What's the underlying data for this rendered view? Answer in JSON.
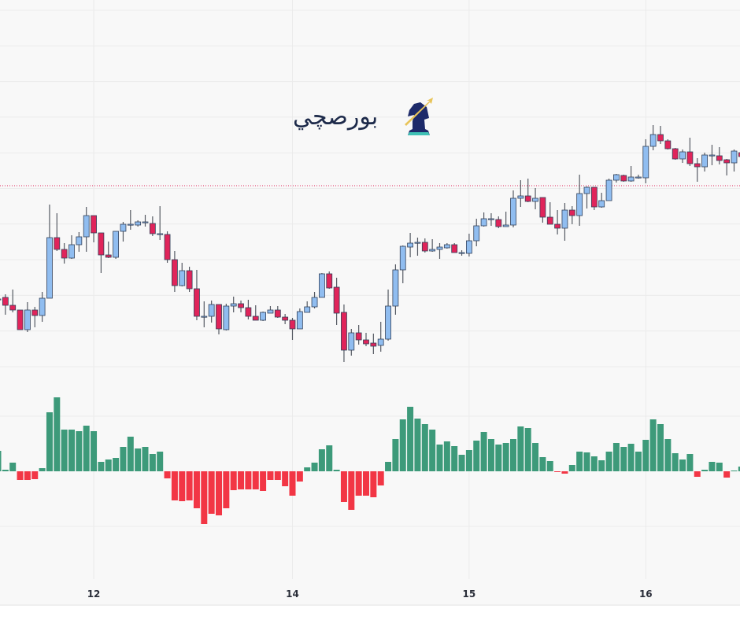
{
  "logo": {
    "text": "بورصچي"
  },
  "colors": {
    "background": "#f8f8f8",
    "grid": "#ebebeb",
    "up_body": "#90bdf0",
    "down_body": "#e0245a",
    "candle_border": "#34425a",
    "wick": "#555a63",
    "hist_up": "#3d9a7a",
    "hist_down": "#f23645",
    "ref_line": "#e0245a"
  },
  "chart_data": [
    {
      "type": "candlestick",
      "title": "",
      "units": "relative (no price axis shown)",
      "ohlc_format": [
        "open",
        "high",
        "low",
        "close"
      ],
      "reference_line": 264,
      "ylim": [
        -60,
        500
      ],
      "x_ticks": [
        {
          "index": 13,
          "label": "12"
        },
        {
          "index": 40,
          "label": "14"
        },
        {
          "index": 64,
          "label": "15"
        },
        {
          "index": 88,
          "label": "16"
        }
      ],
      "candles": [
        [
          120,
          121,
          119,
          120
        ],
        [
          122,
          126,
          100,
          112
        ],
        [
          112,
          132,
          103,
          106
        ],
        [
          106,
          106,
          81,
          81
        ],
        [
          81,
          116,
          78,
          106
        ],
        [
          106,
          110,
          84,
          99
        ],
        [
          99,
          129,
          91,
          121
        ],
        [
          121,
          240,
          121,
          198
        ],
        [
          198,
          229,
          181,
          183
        ],
        [
          183,
          191,
          165,
          172
        ],
        [
          172,
          201,
          171,
          189
        ],
        [
          189,
          205,
          180,
          199
        ],
        [
          199,
          237,
          180,
          226
        ],
        [
          226,
          226,
          192,
          204
        ],
        [
          204,
          204,
          153,
          176
        ],
        [
          176,
          193,
          172,
          173
        ],
        [
          173,
          206,
          171,
          206
        ],
        [
          206,
          218,
          193,
          215
        ],
        [
          215,
          233,
          208,
          215
        ],
        [
          214,
          220,
          212,
          218
        ],
        [
          218,
          227,
          212,
          218
        ],
        [
          216,
          225,
          200,
          203
        ],
        [
          203,
          238,
          195,
          203
        ],
        [
          202,
          206,
          166,
          170
        ],
        [
          170,
          181,
          129,
          137
        ],
        [
          137,
          166,
          136,
          156
        ],
        [
          156,
          161,
          129,
          133
        ],
        [
          133,
          157,
          93,
          98
        ],
        [
          98,
          117,
          84,
          98
        ],
        [
          98,
          118,
          90,
          113
        ],
        [
          113,
          113,
          75,
          82
        ],
        [
          81,
          114,
          80,
          111
        ],
        [
          111,
          123,
          103,
          114
        ],
        [
          114,
          118,
          103,
          109
        ],
        [
          109,
          119,
          94,
          98
        ],
        [
          98,
          112,
          93,
          93
        ],
        [
          93,
          104,
          92,
          103
        ],
        [
          102,
          111,
          102,
          106
        ],
        [
          106,
          111,
          96,
          97
        ],
        [
          97,
          101,
          88,
          93
        ],
        [
          93,
          96,
          68,
          82
        ],
        [
          82,
          108,
          82,
          104
        ],
        [
          103,
          117,
          103,
          110
        ],
        [
          110,
          129,
          108,
          122
        ],
        [
          122,
          153,
          122,
          152
        ],
        [
          152,
          155,
          133,
          134
        ],
        [
          135,
          147,
          87,
          102
        ],
        [
          103,
          113,
          40,
          55
        ],
        [
          55,
          82,
          48,
          77
        ],
        [
          77,
          87,
          62,
          68
        ],
        [
          68,
          77,
          60,
          63
        ],
        [
          64,
          76,
          50,
          60
        ],
        [
          61,
          91,
          53,
          69
        ],
        [
          69,
          132,
          67,
          111
        ],
        [
          111,
          164,
          100,
          157
        ],
        [
          157,
          188,
          140,
          187
        ],
        [
          186,
          204,
          173,
          191
        ],
        [
          192,
          198,
          175,
          192
        ],
        [
          192,
          197,
          179,
          181
        ],
        [
          181,
          196,
          180,
          183
        ],
        [
          183,
          191,
          171,
          186
        ],
        [
          185,
          191,
          184,
          189
        ],
        [
          189,
          191,
          179,
          179
        ],
        [
          179,
          182,
          175,
          179
        ],
        [
          178,
          203,
          174,
          194
        ],
        [
          194,
          222,
          187,
          213
        ],
        [
          213,
          230,
          212,
          222
        ],
        [
          222,
          229,
          213,
          222
        ],
        [
          221,
          225,
          210,
          212
        ],
        [
          212,
          231,
          212,
          214
        ],
        [
          214,
          258,
          211,
          248
        ],
        [
          248,
          271,
          237,
          251
        ],
        [
          251,
          273,
          243,
          244
        ],
        [
          244,
          261,
          234,
          248
        ],
        [
          249,
          249,
          217,
          224
        ],
        [
          224,
          243,
          215,
          215
        ],
        [
          215,
          233,
          202,
          210
        ],
        [
          210,
          242,
          194,
          233
        ],
        [
          233,
          238,
          215,
          226
        ],
        [
          226,
          278,
          213,
          254
        ],
        [
          254,
          263,
          235,
          262
        ],
        [
          262,
          262,
          233,
          237
        ],
        [
          237,
          255,
          236,
          245
        ],
        [
          245,
          273,
          245,
          271
        ],
        [
          271,
          279,
          268,
          278
        ],
        [
          277,
          278,
          269,
          270
        ],
        [
          270,
          289,
          269,
          275
        ],
        [
          275,
          278,
          273,
          275
        ],
        [
          274,
          323,
          267,
          314
        ],
        [
          314,
          341,
          309,
          329
        ],
        [
          329,
          340,
          317,
          321
        ],
        [
          321,
          323,
          310,
          311
        ],
        [
          311,
          312,
          297,
          298
        ],
        [
          298,
          310,
          293,
          307
        ],
        [
          307,
          325,
          289,
          292
        ],
        [
          292,
          299,
          269,
          288
        ],
        [
          288,
          306,
          282,
          303
        ],
        [
          303,
          316,
          290,
          303
        ],
        [
          302,
          313,
          291,
          296
        ],
        [
          297,
          298,
          277,
          293
        ],
        [
          293,
          310,
          282,
          308
        ],
        [
          306,
          310,
          298,
          301
        ]
      ]
    },
    {
      "type": "bar",
      "title": "",
      "units": "relative",
      "values": [
        26,
        2,
        11,
        -11,
        -11,
        -10,
        4,
        75,
        94,
        53,
        53,
        51,
        58,
        51,
        12,
        15,
        17,
        31,
        44,
        29,
        31,
        22,
        25,
        -9,
        -37,
        -38,
        -37,
        -47,
        -67,
        -54,
        -56,
        -47,
        -24,
        -23,
        -23,
        -23,
        -25,
        -11,
        -11,
        -19,
        -31,
        -13,
        5,
        11,
        28,
        33,
        2,
        -39,
        -49,
        -31,
        -31,
        -33,
        -18,
        12,
        41,
        66,
        82,
        67,
        60,
        53,
        34,
        38,
        32,
        21,
        27,
        39,
        50,
        41,
        34,
        36,
        41,
        57,
        55,
        36,
        18,
        13,
        -1,
        -3,
        8,
        25,
        24,
        19,
        14,
        25,
        36,
        31,
        35,
        25,
        40,
        66,
        60,
        41,
        23,
        15,
        22,
        -7,
        2,
        12,
        11,
        -8,
        1,
        6
      ],
      "ylim": [
        -100,
        100
      ]
    }
  ]
}
